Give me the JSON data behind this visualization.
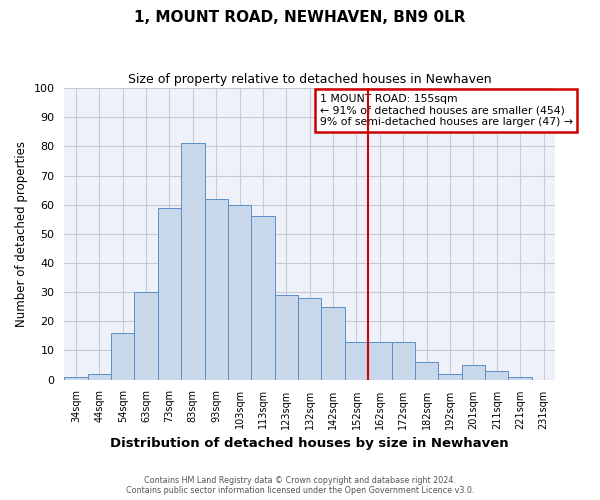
{
  "title": "1, MOUNT ROAD, NEWHAVEN, BN9 0LR",
  "subtitle": "Size of property relative to detached houses in Newhaven",
  "xlabel": "Distribution of detached houses by size in Newhaven",
  "ylabel": "Number of detached properties",
  "bar_labels": [
    "34sqm",
    "44sqm",
    "54sqm",
    "63sqm",
    "73sqm",
    "83sqm",
    "93sqm",
    "103sqm",
    "113sqm",
    "123sqm",
    "132sqm",
    "142sqm",
    "152sqm",
    "162sqm",
    "172sqm",
    "182sqm",
    "192sqm",
    "201sqm",
    "211sqm",
    "221sqm",
    "231sqm"
  ],
  "bar_values": [
    1,
    2,
    16,
    30,
    59,
    81,
    62,
    60,
    56,
    29,
    28,
    25,
    13,
    13,
    13,
    6,
    2,
    5,
    3,
    1,
    0
  ],
  "bar_color": "#c8d8ea",
  "bar_edge_color": "#5b8fc8",
  "background_color": "#eef2f8",
  "grid_color": "#c5cad8",
  "vline_color": "#cc0000",
  "vline_x_index": 12.5,
  "annotation_title": "1 MOUNT ROAD: 155sqm",
  "annotation_line1": "← 91% of detached houses are smaller (454)",
  "annotation_line2": "9% of semi-detached houses are larger (47) →",
  "annotation_box_edgecolor": "#cc0000",
  "ylim": [
    0,
    100
  ],
  "yticks": [
    0,
    10,
    20,
    30,
    40,
    50,
    60,
    70,
    80,
    90,
    100
  ],
  "footer1": "Contains HM Land Registry data © Crown copyright and database right 2024.",
  "footer2": "Contains public sector information licensed under the Open Government Licence v3.0."
}
